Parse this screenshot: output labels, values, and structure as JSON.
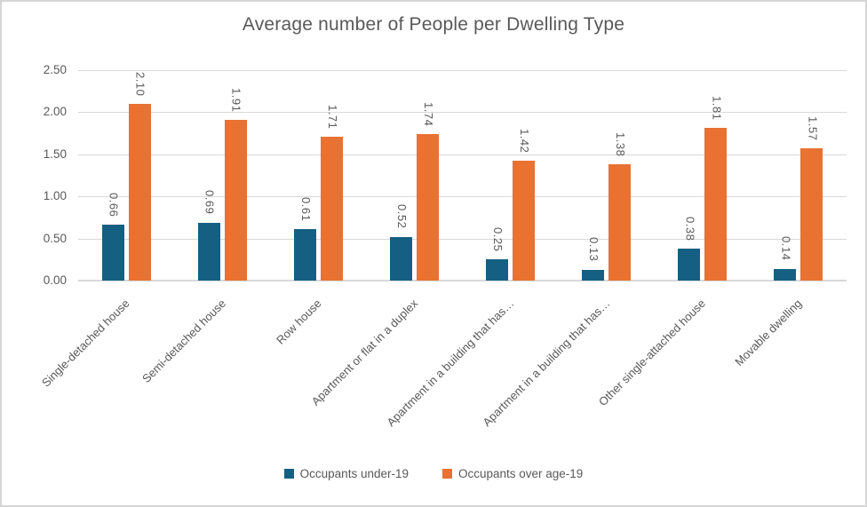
{
  "chart_data": {
    "type": "bar",
    "title": "Average number of People per Dwelling Type",
    "categories": [
      "Single-detached house",
      "Semi-detached house",
      "Row house",
      "Apartment or flat in a duplex",
      "Apartment in a building that has…",
      "Apartment in a building that has…",
      "Other single-attached house",
      "Movable dwelling"
    ],
    "series": [
      {
        "name": "Occupants under-19",
        "color": "#156082",
        "values": [
          0.66,
          0.69,
          0.61,
          0.52,
          0.25,
          0.13,
          0.38,
          0.14
        ],
        "labels": [
          "0.66",
          "0.69",
          "0.61",
          "0.52",
          "0.25",
          "0.13",
          "0.38",
          "0.14"
        ]
      },
      {
        "name": "Occupants over age-19",
        "color": "#E97132",
        "values": [
          2.1,
          1.91,
          1.71,
          1.74,
          1.42,
          1.38,
          1.81,
          1.57
        ],
        "labels": [
          "2.10",
          "1.91",
          "1.71",
          "1.74",
          "1.42",
          "1.38",
          "1.81",
          "1.57"
        ]
      }
    ],
    "y_axis": {
      "min": 0,
      "max": 2.5,
      "step": 0.5,
      "tick_labels": [
        "0.00",
        "0.50",
        "1.00",
        "1.50",
        "2.00",
        "2.50"
      ]
    },
    "grid": true,
    "legend_position": "bottom",
    "data_label_rotation": 90,
    "category_label_rotation": -45
  },
  "colors": {
    "title_text": "#595959",
    "axis_text": "#595959",
    "gridline": "#D9D9D9",
    "frame_border": "#D6D6D6",
    "background": "#FFFFFF"
  }
}
